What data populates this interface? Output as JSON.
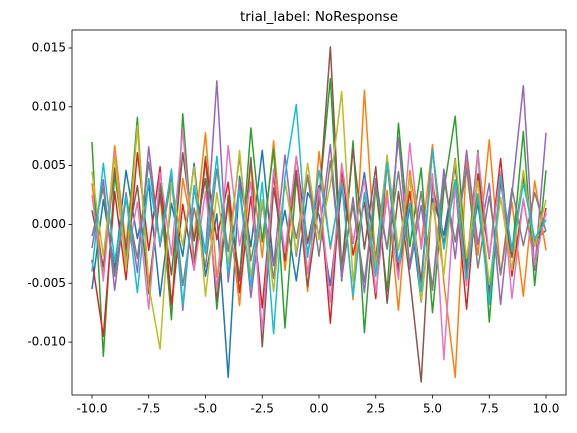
{
  "chart_data": {
    "type": "line",
    "title": "trial_label: NoResponse",
    "x": [
      -10,
      -9.5,
      -9,
      -8.5,
      -8,
      -7.5,
      -7,
      -6.5,
      -6,
      -5.5,
      -5,
      -4.5,
      -4,
      -3.5,
      -3,
      -2.5,
      -2,
      -1.5,
      -1,
      -0.5,
      0,
      0.5,
      1,
      1.5,
      2,
      2.5,
      3,
      3.5,
      4,
      4.5,
      5,
      5.5,
      6,
      6.5,
      7,
      7.5,
      8,
      8.5,
      9,
      9.5,
      10
    ],
    "series": [
      {
        "color": "#1f77b4",
        "values": [
          -0.0055,
          0.0021,
          -0.0038,
          0.0046,
          -0.0012,
          0.0034,
          -0.0061,
          0.0018,
          -0.0027,
          0.0052,
          -0.0044,
          0.0009,
          -0.013,
          0.0041,
          -0.0019,
          0.0063,
          -0.0035,
          0.0012,
          -0.0048,
          0.0027,
          0.0008,
          -0.0052,
          0.0031,
          -0.0016,
          0.0044,
          -0.0029,
          0.0057,
          -0.0041,
          0.0015,
          -0.0066,
          0.0022,
          -0.0009,
          0.0049,
          -0.0033,
          0.0018,
          -0.0058,
          0.0036,
          -0.0021,
          0.004,
          -0.0014,
          -0.0005
        ]
      },
      {
        "color": "#ff7f0e",
        "values": [
          0.0035,
          -0.0042,
          0.0067,
          -0.0018,
          0.0082,
          -0.0051,
          0.0024,
          -0.0076,
          0.0039,
          -0.0012,
          0.0078,
          -0.0045,
          0.0016,
          -0.0069,
          0.0053,
          -0.0028,
          0.0071,
          -0.0039,
          0.0044,
          -0.0057,
          0.0062,
          -0.0021,
          0.0038,
          -0.0064,
          0.0114,
          -0.0035,
          0.0029,
          -0.0073,
          0.0046,
          -0.0017,
          0.0068,
          -0.0049,
          -0.013,
          0.0055,
          -0.0026,
          0.0072,
          -0.0043,
          0.0019,
          -0.0061,
          0.0037,
          -0.0022
        ]
      },
      {
        "color": "#2ca02c",
        "values": [
          0.007,
          -0.0112,
          0.0043,
          -0.0028,
          0.0091,
          -0.0059,
          0.0035,
          -0.0081,
          0.0094,
          -0.0033,
          0.0058,
          -0.0072,
          0.0025,
          -0.0046,
          0.0082,
          -0.0015,
          0.0064,
          -0.0088,
          0.0039,
          -0.0024,
          0.0021,
          0.0124,
          -0.0048,
          0.0071,
          -0.0092,
          0.0033,
          -0.0057,
          0.0086,
          -0.0019,
          0.0048,
          -0.0075,
          0.0029,
          0.0092,
          -0.0038,
          0.0063,
          -0.0083,
          0.0041,
          -0.0026,
          0.0079,
          -0.0052,
          0.0046
        ]
      },
      {
        "color": "#d62728",
        "values": [
          -0.003,
          -0.0095,
          0.0028,
          -0.0047,
          0.0061,
          -0.0022,
          0.0049,
          -0.0068,
          0.0017,
          -0.0039,
          0.0055,
          -0.0013,
          0.0036,
          -0.0058,
          0.0024,
          -0.0071,
          0.0042,
          -0.0031,
          0.0058,
          -0.0016,
          0.0033,
          -0.0084,
          0.0047,
          -0.0026,
          0.0019,
          -0.0063,
          0.0052,
          -0.0037,
          0.0028,
          -0.0049,
          0.0064,
          -0.0018,
          0.0035,
          -0.0072,
          0.0043,
          -0.0029,
          0.0056,
          -0.0044,
          0.0021,
          -0.0033,
          0.0014
        ]
      },
      {
        "color": "#9467bd",
        "values": [
          -0.002,
          0.0038,
          -0.0056,
          0.0027,
          -0.0041,
          0.0066,
          -0.0019,
          0.0045,
          -0.0073,
          0.0031,
          -0.0024,
          0.0122,
          -0.0049,
          0.0037,
          -0.0062,
          0.0018,
          -0.0035,
          0.0059,
          -0.0027,
          0.0042,
          -0.0011,
          0.0068,
          -0.0046,
          0.0023,
          -0.0058,
          0.0039,
          -0.0021,
          0.0074,
          -0.0038,
          0.0016,
          -0.0054,
          0.0047,
          -0.0029,
          0.0063,
          -0.0017,
          0.0035,
          -0.0068,
          0.0026,
          0.0118,
          -0.0039,
          0.0078
        ]
      },
      {
        "color": "#8c564b",
        "values": [
          0.0012,
          -0.0036,
          0.0048,
          -0.0021,
          0.0033,
          -0.0057,
          0.0026,
          -0.0043,
          0.0061,
          -0.0014,
          0.0039,
          -0.0065,
          0.0022,
          -0.0048,
          0.0057,
          -0.0104,
          0.0031,
          -0.0027,
          0.0046,
          -0.0053,
          0.0018,
          0.0151,
          -0.0038,
          0.0064,
          -0.0021,
          0.0049,
          -0.0067,
          0.0028,
          -0.0045,
          -0.0134,
          0.0035,
          -0.0019,
          0.0056,
          -0.0041,
          0.0023,
          -0.0062,
          0.0037,
          -0.0028,
          0.0044,
          -0.0016,
          0.0009
        ]
      },
      {
        "color": "#e377c2",
        "values": [
          0.0025,
          -0.0048,
          0.0061,
          -0.0033,
          0.0019,
          -0.0072,
          0.0044,
          -0.0026,
          0.0081,
          -0.0039,
          0.0028,
          -0.0055,
          0.0067,
          -0.0018,
          0.0036,
          -0.0091,
          0.0047,
          -0.0024,
          0.0058,
          -0.0042,
          0.0031,
          -0.0066,
          0.0052,
          -0.0015,
          0.0039,
          -0.0058,
          0.0024,
          -0.0047,
          0.0069,
          -0.0021,
          0.0043,
          -0.0115,
          0.0034,
          -0.0052,
          0.0061,
          -0.0028,
          0.0045,
          -0.0063,
          0.0022,
          -0.0034,
          0.0011
        ]
      },
      {
        "color": "#7f7f7f",
        "values": [
          -0.001,
          0.0031,
          -0.0044,
          0.0022,
          -0.0029,
          0.0053,
          -0.0017,
          0.0038,
          -0.0052,
          0.0014,
          -0.0036,
          0.0047,
          -0.0023,
          0.0058,
          -0.0031,
          0.0019,
          -0.0046,
          0.0035,
          -0.0012,
          0.0041,
          -0.0027,
          0.0054,
          -0.0038,
          0.0016,
          -0.0049,
          0.0033,
          -0.0021,
          0.0045,
          -0.0034,
          0.0028,
          -0.0056,
          0.0039,
          -0.0015,
          0.0048,
          -0.0037,
          0.0024,
          -0.0043,
          0.0031,
          -0.0018,
          0.0027,
          -0.0006
        ]
      },
      {
        "color": "#bcbd22",
        "values": [
          0.0045,
          -0.0027,
          0.0058,
          -0.0039,
          0.0084,
          -0.0052,
          -0.0106,
          0.0036,
          -0.0018,
          0.0049,
          -0.0061,
          0.0027,
          -0.0034,
          0.0063,
          -0.0045,
          0.0021,
          -0.0057,
          0.0038,
          -0.0024,
          0.0052,
          -0.0013,
          0.0034,
          0.0113,
          -0.0048,
          0.0026,
          -0.0037,
          0.0059,
          -0.0022,
          0.0041,
          -0.0066,
          0.0018,
          -0.0043,
          0.0055,
          -0.0029,
          0.0037,
          -0.0051,
          0.0023,
          -0.0039,
          0.0046,
          -0.0019,
          0.0021
        ]
      },
      {
        "color": "#17becf",
        "values": [
          -0.004,
          0.0052,
          -0.0031,
          0.0024,
          -0.0058,
          0.0039,
          -0.0016,
          0.0047,
          -0.0069,
          0.0033,
          -0.0025,
          0.0058,
          -0.0042,
          0.0029,
          -0.0053,
          0.0036,
          -0.0093,
          0.0041,
          0.0102,
          -0.0028,
          0.0046,
          -0.0019,
          0.0035,
          -0.0061,
          0.0027,
          -0.0044,
          0.0053,
          -0.0032,
          0.0018,
          -0.0057,
          0.0064,
          -0.0021,
          0.0038,
          -0.0047,
          0.0026,
          -0.0068,
          0.0042,
          -0.0023,
          0.0035,
          -0.0012,
          0.0004
        ]
      }
    ],
    "xlim": [
      -10.88,
      10.88
    ],
    "xticks": [
      {
        "value": -10,
        "label": "-10.0"
      },
      {
        "value": -7.5,
        "label": "-7.5"
      },
      {
        "value": -5,
        "label": "-5.0"
      },
      {
        "value": -2.5,
        "label": "-2.5"
      },
      {
        "value": 0,
        "label": "0.0"
      },
      {
        "value": 2.5,
        "label": "2.5"
      },
      {
        "value": 5,
        "label": "5.0"
      },
      {
        "value": 7.5,
        "label": "7.5"
      },
      {
        "value": 10,
        "label": "10.0"
      }
    ],
    "ylim": [
      -0.0145,
      0.01653
    ],
    "yticks": [
      {
        "value": -0.01,
        "label": "-0.010"
      },
      -0.005,
      {
        "value": 0,
        "label": "0.000"
      },
      0.005,
      {
        "value": 0.01,
        "label": "0.010"
      },
      0.015
    ],
    "grid": false
  }
}
